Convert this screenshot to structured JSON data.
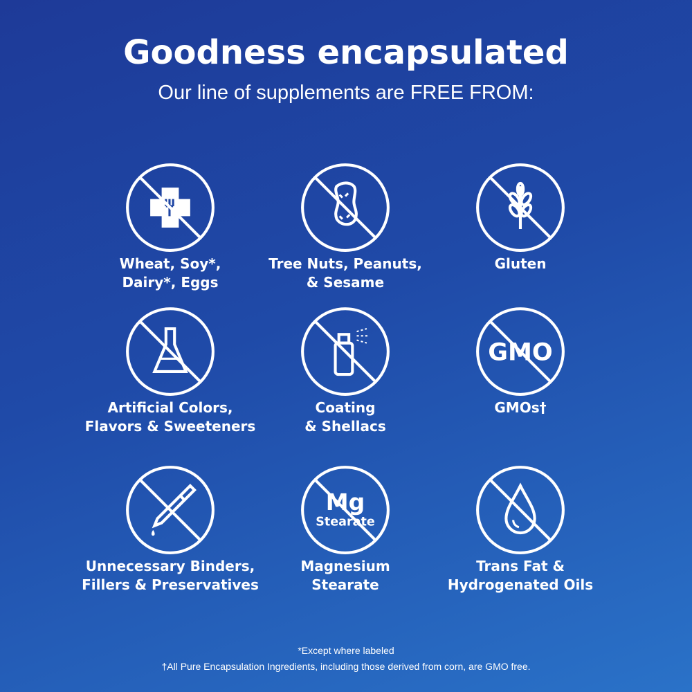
{
  "header": {
    "title": "Goodness encapsulated",
    "subtitle": "Our line of supplements are FREE FROM:"
  },
  "items": [
    {
      "icon": "allergen-cross-icon",
      "lines": [
        "Wheat, Soy*,",
        "Dairy*, Eggs"
      ]
    },
    {
      "icon": "peanut-icon",
      "lines": [
        "Tree Nuts, Peanuts,",
        "& Sesame"
      ]
    },
    {
      "icon": "wheat-icon",
      "lines": [
        "Gluten",
        ""
      ]
    },
    {
      "icon": "flask-icon",
      "lines": [
        "Artificial Colors,",
        "Flavors & Sweeteners"
      ]
    },
    {
      "icon": "spray-can-icon",
      "lines": [
        "Coating",
        "& Shellacs"
      ]
    },
    {
      "icon": "gmo-icon",
      "text": "GMO",
      "lines": [
        "GMOs†",
        ""
      ]
    },
    {
      "icon": "dropper-icon",
      "lines": [
        "Unnecessary Binders,",
        "Fillers & Preservatives"
      ]
    },
    {
      "icon": "mg-stearate-icon",
      "text": "Mg",
      "text2": "Stearate",
      "lines": [
        "Magnesium",
        "Stearate"
      ]
    },
    {
      "icon": "oil-drop-icon",
      "lines": [
        "Trans Fat &",
        "Hydrogenated Oils"
      ]
    }
  ],
  "footer": {
    "note1": "*Except where labeled",
    "note2": "†All Pure Encapsulation Ingredients, including those derived from corn, are GMO free."
  },
  "colors": {
    "background_start": "#1e3a98",
    "background_end": "#2a72c8",
    "foreground": "#ffffff"
  }
}
